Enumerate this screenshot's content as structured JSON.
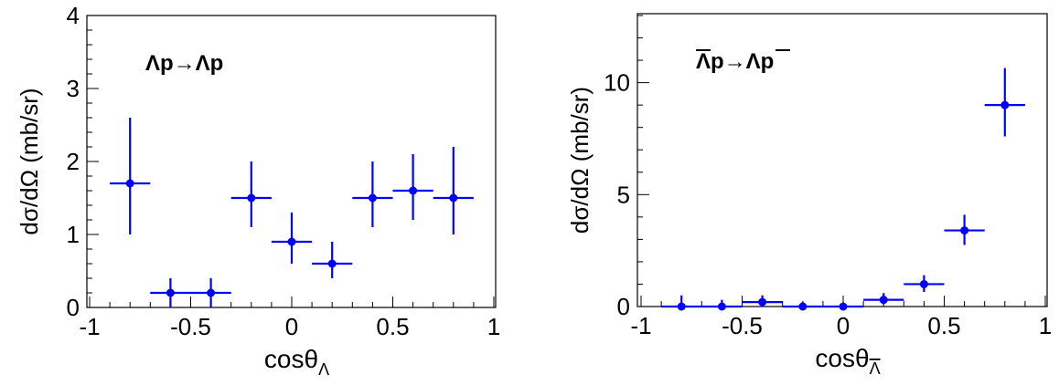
{
  "chart_data": [
    {
      "type": "scatter",
      "annotation": "Λp→Λp",
      "annotation_overline": false,
      "xlabel": "cosθ",
      "xlabel_sub": "Λ",
      "xlabel_sub_overline": false,
      "ylabel": "dσ/dΩ (mb/sr)",
      "xlim": [
        -1,
        1
      ],
      "ylim": [
        0,
        4
      ],
      "xticks": [
        "-1",
        "-0.5",
        "0",
        "0.5",
        "1"
      ],
      "xtick_values": [
        -1,
        -0.5,
        0,
        0.5,
        1
      ],
      "yticks": [
        "0",
        "1",
        "2",
        "3",
        "4"
      ],
      "ytick_values": [
        0,
        1,
        2,
        3,
        4
      ],
      "y_minor_step": 0.2,
      "x_minor_step": 0.1,
      "marker_color": "#0000ff",
      "points": [
        {
          "x": -0.8,
          "xerr": 0.1,
          "y": 1.7,
          "ylo": 1.0,
          "yhi": 2.6
        },
        {
          "x": -0.6,
          "xerr": 0.1,
          "y": 0.2,
          "ylo": 0.0,
          "yhi": 0.4
        },
        {
          "x": -0.4,
          "xerr": 0.1,
          "y": 0.2,
          "ylo": 0.0,
          "yhi": 0.4
        },
        {
          "x": -0.2,
          "xerr": 0.1,
          "y": 1.5,
          "ylo": 1.1,
          "yhi": 2.0
        },
        {
          "x": 0.0,
          "xerr": 0.1,
          "y": 0.9,
          "ylo": 0.6,
          "yhi": 1.3
        },
        {
          "x": 0.2,
          "xerr": 0.1,
          "y": 0.6,
          "ylo": 0.4,
          "yhi": 0.9
        },
        {
          "x": 0.4,
          "xerr": 0.1,
          "y": 1.5,
          "ylo": 1.1,
          "yhi": 2.0
        },
        {
          "x": 0.6,
          "xerr": 0.1,
          "y": 1.6,
          "ylo": 1.2,
          "yhi": 2.1
        },
        {
          "x": 0.8,
          "xerr": 0.1,
          "y": 1.5,
          "ylo": 1.0,
          "yhi": 2.2
        }
      ]
    },
    {
      "type": "scatter",
      "annotation": "Λp→Λp",
      "annotation_overline": true,
      "xlabel": "cosθ",
      "xlabel_sub": "Λ",
      "xlabel_sub_overline": true,
      "ylabel": "dσ/dΩ (mb/sr)",
      "xlim": [
        -1,
        1
      ],
      "ylim": [
        0,
        13
      ],
      "xticks": [
        "-1",
        "-0.5",
        "0",
        "0.5",
        "1"
      ],
      "xtick_values": [
        -1,
        -0.5,
        0,
        0.5,
        1
      ],
      "yticks": [
        "0",
        "5",
        "10"
      ],
      "ytick_values": [
        0,
        5,
        10
      ],
      "y_minor_step": 1,
      "x_minor_step": 0.1,
      "marker_color": "#0000ff",
      "points": [
        {
          "x": -0.8,
          "xerr": 0.1,
          "y": 0.0,
          "ylo": 0.0,
          "yhi": 0.5
        },
        {
          "x": -0.6,
          "xerr": 0.1,
          "y": 0.0,
          "ylo": 0.0,
          "yhi": 0.3
        },
        {
          "x": -0.4,
          "xerr": 0.1,
          "y": 0.2,
          "ylo": 0.0,
          "yhi": 0.5
        },
        {
          "x": -0.2,
          "xerr": 0.1,
          "y": 0.0,
          "ylo": 0.0,
          "yhi": 0.2
        },
        {
          "x": 0.0,
          "xerr": 0.1,
          "y": 0.0,
          "ylo": 0.0,
          "yhi": 0.1
        },
        {
          "x": 0.2,
          "xerr": 0.1,
          "y": 0.3,
          "ylo": 0.1,
          "yhi": 0.6
        },
        {
          "x": 0.4,
          "xerr": 0.1,
          "y": 1.0,
          "ylo": 0.65,
          "yhi": 1.4
        },
        {
          "x": 0.6,
          "xerr": 0.1,
          "y": 3.4,
          "ylo": 2.75,
          "yhi": 4.1
        },
        {
          "x": 0.8,
          "xerr": 0.1,
          "y": 9.0,
          "ylo": 7.6,
          "yhi": 10.65
        }
      ]
    }
  ]
}
